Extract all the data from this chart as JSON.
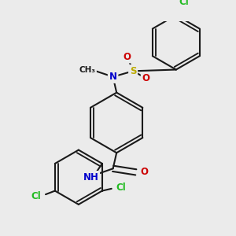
{
  "bg_color": "#ebebeb",
  "bond_color": "#1a1a1a",
  "bond_width": 1.5,
  "atom_colors": {
    "C": "#1a1a1a",
    "H": "#888888",
    "N": "#0000cc",
    "O": "#cc0000",
    "S": "#bbaa00",
    "Cl": "#22bb22"
  },
  "font_size": 8.5,
  "font_size_small": 7.5
}
